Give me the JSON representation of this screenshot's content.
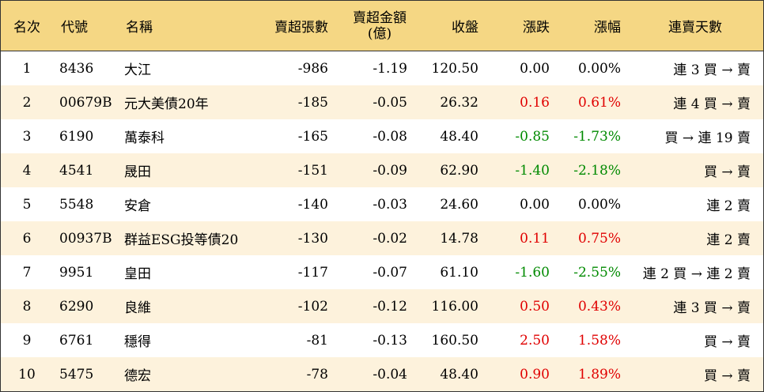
{
  "headers": {
    "rank": "名次",
    "code": "代號",
    "name": "名稱",
    "net_sell_lots": "賣超張數",
    "net_sell_amount_line1": "賣超金額",
    "net_sell_amount_line2": "(億)",
    "close": "收盤",
    "change": "漲跌",
    "change_pct": "漲幅",
    "consecutive": "連賣天數"
  },
  "rows": [
    {
      "rank": "1",
      "code": "8436",
      "name": "大江",
      "lots": "-986",
      "amount": "-1.19",
      "close": "120.50",
      "change": "0.00",
      "pct": "0.00%",
      "dir": "flat",
      "days": "連 3 買 → 賣"
    },
    {
      "rank": "2",
      "code": "00679B",
      "name": "元大美債20年",
      "lots": "-185",
      "amount": "-0.05",
      "close": "26.32",
      "change": "0.16",
      "pct": "0.61%",
      "dir": "up",
      "days": "連 4 買 → 賣"
    },
    {
      "rank": "3",
      "code": "6190",
      "name": "萬泰科",
      "lots": "-165",
      "amount": "-0.08",
      "close": "48.40",
      "change": "-0.85",
      "pct": "-1.73%",
      "dir": "down",
      "days": "買 → 連 19 賣"
    },
    {
      "rank": "4",
      "code": "4541",
      "name": "晟田",
      "lots": "-151",
      "amount": "-0.09",
      "close": "62.90",
      "change": "-1.40",
      "pct": "-2.18%",
      "dir": "down",
      "days": "買 → 賣"
    },
    {
      "rank": "5",
      "code": "5548",
      "name": "安倉",
      "lots": "-140",
      "amount": "-0.03",
      "close": "24.60",
      "change": "0.00",
      "pct": "0.00%",
      "dir": "flat",
      "days": "連 2 賣"
    },
    {
      "rank": "6",
      "code": "00937B",
      "name": "群益ESG投等債20",
      "lots": "-130",
      "amount": "-0.02",
      "close": "14.78",
      "change": "0.11",
      "pct": "0.75%",
      "dir": "up",
      "days": "連 2 賣"
    },
    {
      "rank": "7",
      "code": "9951",
      "name": "皇田",
      "lots": "-117",
      "amount": "-0.07",
      "close": "61.10",
      "change": "-1.60",
      "pct": "-2.55%",
      "dir": "down",
      "days": "連 2 買 → 連 2 賣"
    },
    {
      "rank": "8",
      "code": "6290",
      "name": "良維",
      "lots": "-102",
      "amount": "-0.12",
      "close": "116.00",
      "change": "0.50",
      "pct": "0.43%",
      "dir": "up",
      "days": "連 3 買 → 賣"
    },
    {
      "rank": "9",
      "code": "6761",
      "name": "穩得",
      "lots": "-81",
      "amount": "-0.13",
      "close": "160.50",
      "change": "2.50",
      "pct": "1.58%",
      "dir": "up",
      "days": "買 → 賣"
    },
    {
      "rank": "10",
      "code": "5475",
      "name": "德宏",
      "lots": "-78",
      "amount": "-0.04",
      "close": "48.40",
      "change": "0.90",
      "pct": "1.89%",
      "dir": "up",
      "days": "買 → 賣"
    }
  ],
  "colors": {
    "header_bg": "#f5d784",
    "stripe_bg": "#fdf2dc",
    "up": "#e00000",
    "down": "#008a00"
  }
}
